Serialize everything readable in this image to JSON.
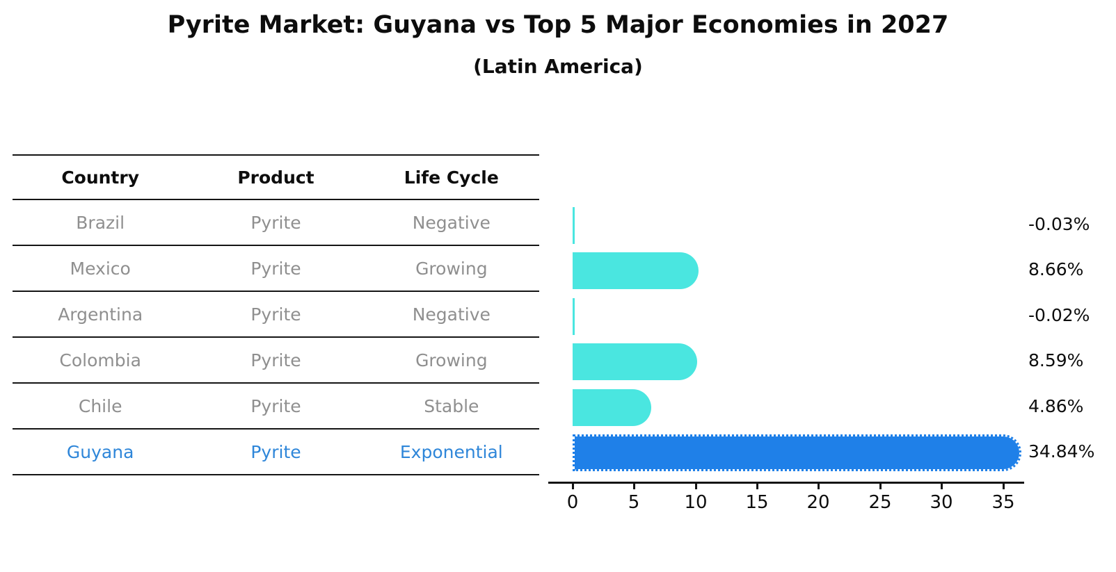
{
  "title": "Pyrite Market: Guyana vs Top 5 Major Economies in 2027",
  "subtitle": "(Latin America)",
  "table": {
    "headers": [
      "Country",
      "Product",
      "Life Cycle"
    ],
    "rows": [
      {
        "country": "Brazil",
        "product": "Pyrite",
        "life_cycle": "Negative",
        "highlight": false
      },
      {
        "country": "Mexico",
        "product": "Pyrite",
        "life_cycle": "Growing",
        "highlight": false
      },
      {
        "country": "Argentina",
        "product": "Pyrite",
        "life_cycle": "Negative",
        "highlight": false
      },
      {
        "country": "Colombia",
        "product": "Pyrite",
        "life_cycle": "Growing",
        "highlight": false
      },
      {
        "country": "Chile",
        "product": "Pyrite",
        "life_cycle": "Stable",
        "highlight": false
      },
      {
        "country": "Guyana",
        "product": "Pyrite",
        "life_cycle": "Exponential",
        "highlight": true
      }
    ]
  },
  "chart_data": {
    "type": "bar",
    "orientation": "horizontal",
    "categories": [
      "Brazil",
      "Mexico",
      "Argentina",
      "Colombia",
      "Chile",
      "Guyana"
    ],
    "values": [
      -0.03,
      8.66,
      -0.02,
      8.59,
      4.86,
      34.84
    ],
    "value_labels": [
      "-0.03%",
      "8.66%",
      "-0.02%",
      "8.59%",
      "4.86%",
      "34.84%"
    ],
    "x_ticks": [
      0,
      5,
      10,
      15,
      20,
      25,
      30,
      35
    ],
    "xlim": [
      0,
      35
    ],
    "grid": false,
    "legend": "none",
    "highlight_index": 5,
    "bar_color": "#4ae6e0",
    "highlight_color": "#1f80e8",
    "highlight_text_color": "#2e86d9",
    "row_text_color": "#8f8f8f"
  }
}
